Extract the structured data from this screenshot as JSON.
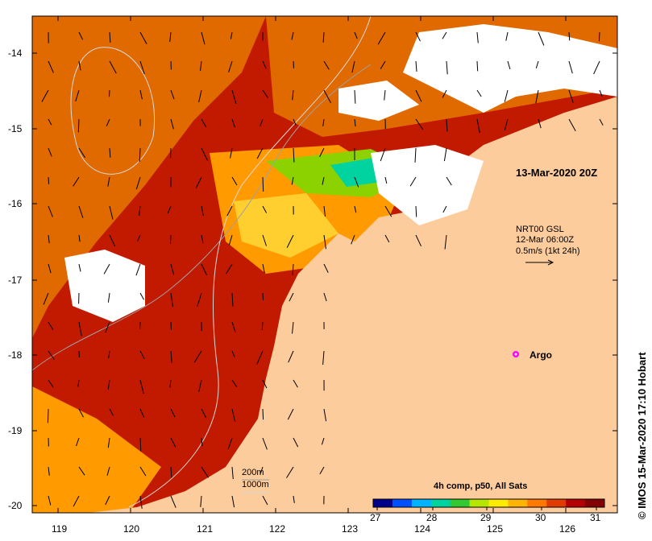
{
  "map": {
    "date_label": "13-Mar-2020 20Z",
    "current_legend": {
      "line1": "NRT00 GSL",
      "line2": "12-Mar 06:00Z",
      "line3": "0.5m/s (1kt 24h)"
    },
    "argo_label": "Argo",
    "depth_legend": {
      "d200": "200m",
      "d1000": "1000m"
    },
    "credit": "© IMOS 15-Mar-2020 17:10 Hobart",
    "y_ticks": [
      "-14",
      "-15",
      "-16",
      "-17",
      "-18",
      "-19",
      "-20"
    ],
    "x_ticks": [
      "119",
      "120",
      "121",
      "122",
      "123",
      "124",
      "125",
      "126"
    ],
    "colorbar": {
      "title": "4h comp, p50, All Sats",
      "ticks": [
        "27",
        "28",
        "29",
        "30",
        "31"
      ],
      "colors": [
        "#00008b",
        "#0050ff",
        "#00b4ff",
        "#00d2a0",
        "#32c832",
        "#b4e600",
        "#ffeb00",
        "#ffb400",
        "#ff7800",
        "#e03c00",
        "#b40000",
        "#820000"
      ]
    },
    "colors": {
      "land": "#fccc9c",
      "hot": "#c21a00",
      "warm": "#e06a00",
      "mid": "#ff9b00",
      "cool": "#ffe000",
      "cloud": "#ffffff"
    }
  }
}
